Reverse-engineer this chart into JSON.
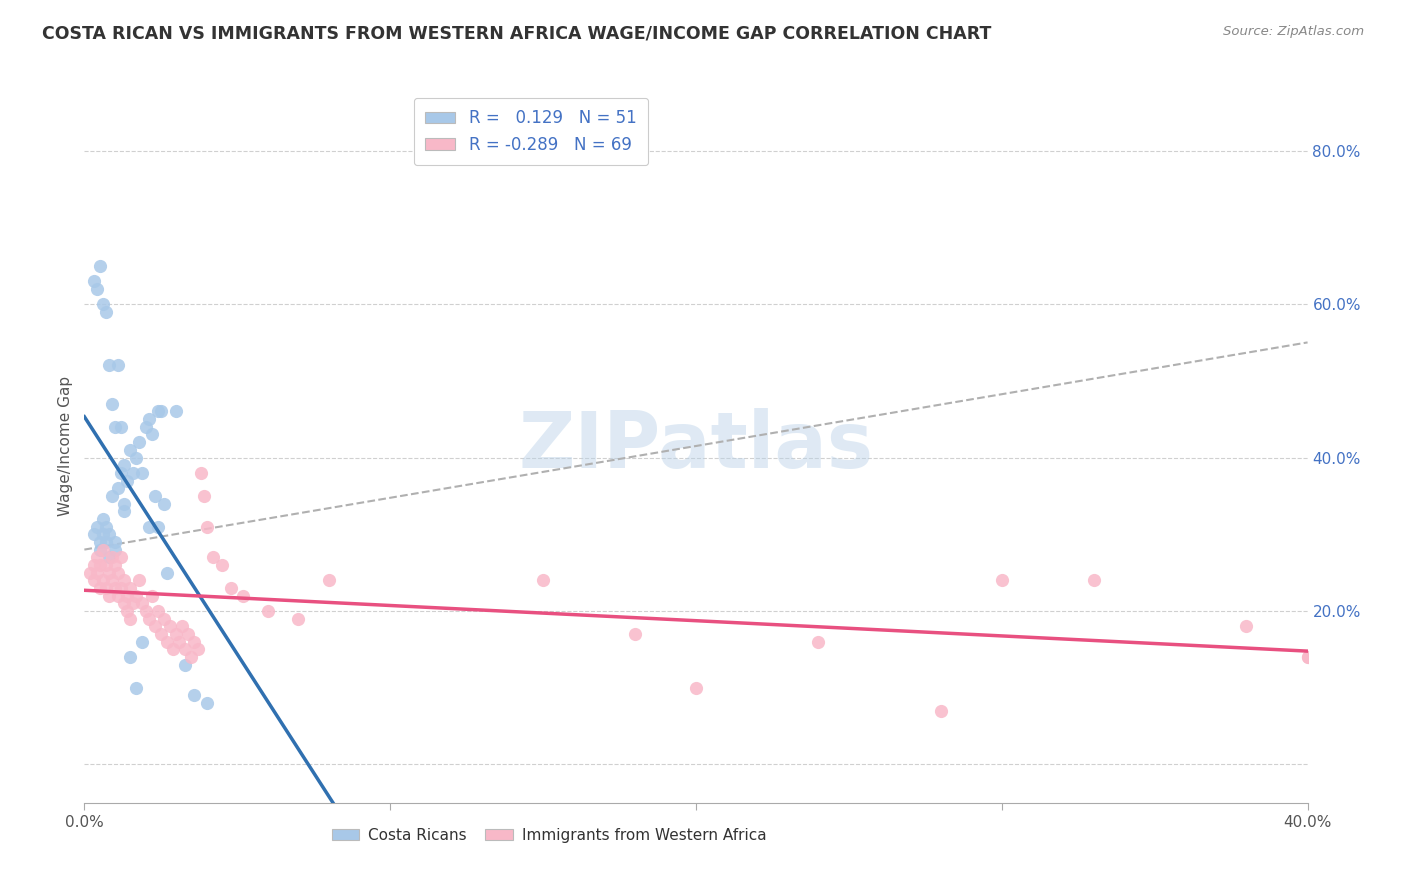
{
  "title": "COSTA RICAN VS IMMIGRANTS FROM WESTERN AFRICA WAGE/INCOME GAP CORRELATION CHART",
  "source": "Source: ZipAtlas.com",
  "ylabel": "Wage/Income Gap",
  "xlim": [
    0.0,
    0.4
  ],
  "ylim": [
    -0.05,
    0.88
  ],
  "R1": 0.129,
  "N1": 51,
  "R2": -0.289,
  "N2": 69,
  "color_blue": "#a8c8e8",
  "color_pink": "#f8b8c8",
  "color_blue_line": "#3070b0",
  "color_pink_line": "#e85080",
  "color_dashed": "#b0b0b0",
  "watermark": "ZIPatlas",
  "background_color": "#ffffff",
  "grid_color": "#d0d0d0",
  "blue_x": [
    0.003,
    0.004,
    0.005,
    0.005,
    0.006,
    0.006,
    0.007,
    0.007,
    0.008,
    0.008,
    0.009,
    0.01,
    0.01,
    0.011,
    0.012,
    0.013,
    0.013,
    0.014,
    0.015,
    0.016,
    0.017,
    0.018,
    0.019,
    0.02,
    0.021,
    0.022,
    0.023,
    0.024,
    0.025,
    0.026,
    0.003,
    0.004,
    0.005,
    0.006,
    0.007,
    0.008,
    0.009,
    0.01,
    0.011,
    0.012,
    0.013,
    0.015,
    0.017,
    0.019,
    0.021,
    0.024,
    0.027,
    0.03,
    0.033,
    0.036,
    0.04
  ],
  "blue_y": [
    0.3,
    0.31,
    0.29,
    0.28,
    0.3,
    0.32,
    0.29,
    0.31,
    0.27,
    0.3,
    0.35,
    0.29,
    0.28,
    0.36,
    0.38,
    0.39,
    0.34,
    0.37,
    0.41,
    0.38,
    0.4,
    0.42,
    0.38,
    0.44,
    0.45,
    0.43,
    0.35,
    0.46,
    0.46,
    0.34,
    0.63,
    0.62,
    0.65,
    0.6,
    0.59,
    0.52,
    0.47,
    0.44,
    0.52,
    0.44,
    0.33,
    0.14,
    0.1,
    0.16,
    0.31,
    0.31,
    0.25,
    0.46,
    0.13,
    0.09,
    0.08
  ],
  "pink_x": [
    0.002,
    0.003,
    0.003,
    0.004,
    0.004,
    0.005,
    0.005,
    0.006,
    0.006,
    0.007,
    0.007,
    0.008,
    0.008,
    0.009,
    0.009,
    0.01,
    0.01,
    0.011,
    0.011,
    0.012,
    0.012,
    0.013,
    0.013,
    0.014,
    0.014,
    0.015,
    0.015,
    0.016,
    0.017,
    0.018,
    0.019,
    0.02,
    0.021,
    0.022,
    0.023,
    0.024,
    0.025,
    0.026,
    0.027,
    0.028,
    0.029,
    0.03,
    0.031,
    0.032,
    0.033,
    0.034,
    0.035,
    0.036,
    0.037,
    0.038,
    0.039,
    0.04,
    0.042,
    0.045,
    0.048,
    0.052,
    0.06,
    0.07,
    0.08,
    0.15,
    0.18,
    0.2,
    0.24,
    0.28,
    0.3,
    0.33,
    0.38,
    0.4,
    0.4
  ],
  "pink_y": [
    0.25,
    0.26,
    0.24,
    0.27,
    0.25,
    0.26,
    0.23,
    0.28,
    0.24,
    0.26,
    0.23,
    0.25,
    0.22,
    0.24,
    0.27,
    0.23,
    0.26,
    0.22,
    0.25,
    0.23,
    0.27,
    0.21,
    0.24,
    0.22,
    0.2,
    0.23,
    0.19,
    0.21,
    0.22,
    0.24,
    0.21,
    0.2,
    0.19,
    0.22,
    0.18,
    0.2,
    0.17,
    0.19,
    0.16,
    0.18,
    0.15,
    0.17,
    0.16,
    0.18,
    0.15,
    0.17,
    0.14,
    0.16,
    0.15,
    0.38,
    0.35,
    0.31,
    0.27,
    0.26,
    0.23,
    0.22,
    0.2,
    0.19,
    0.24,
    0.24,
    0.17,
    0.1,
    0.16,
    0.07,
    0.24,
    0.24,
    0.18,
    0.14,
    0.14
  ]
}
